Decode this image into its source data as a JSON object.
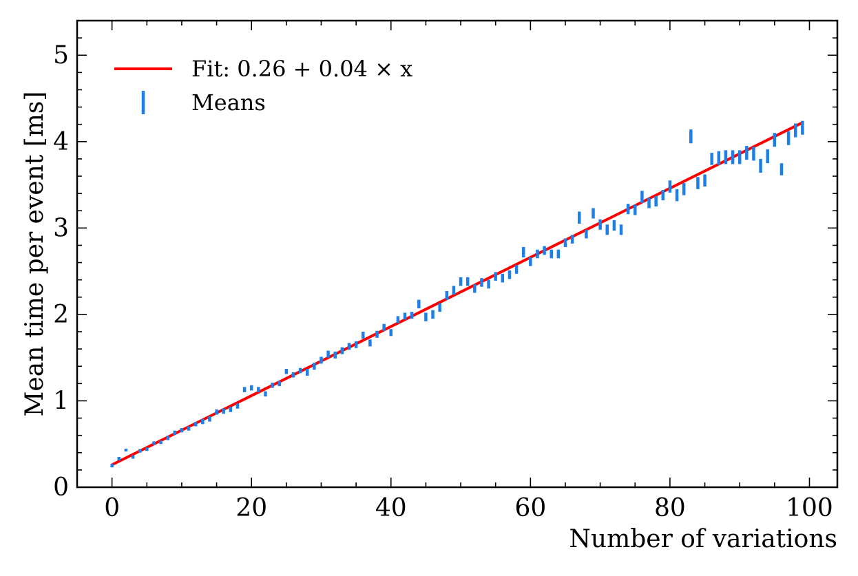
{
  "chart_data": {
    "type": "scatter",
    "title": "",
    "xlabel": "Number of variations",
    "ylabel": "Mean time per event [ms]",
    "xlim": [
      -5,
      104
    ],
    "ylim": [
      0,
      5.4
    ],
    "xticks": [
      0,
      20,
      40,
      60,
      80,
      100
    ],
    "xtick_labels": [
      "0",
      "20",
      "40",
      "60",
      "80",
      "100"
    ],
    "yticks": [
      0,
      1,
      2,
      3,
      4,
      5
    ],
    "ytick_labels": [
      "0",
      "1",
      "2",
      "3",
      "4",
      "5"
    ],
    "grid": false,
    "legend_position": "top-left",
    "legend": {
      "fit_label": "Fit: 0.26 + 0.04 × x",
      "means_label": "Means"
    },
    "fit": {
      "intercept": 0.26,
      "slope": 0.04,
      "x_range": [
        0,
        99
      ],
      "color": "#ff0000"
    },
    "series": [
      {
        "name": "Means",
        "color": "#1e7fe6",
        "x": [
          0,
          1,
          2,
          3,
          4,
          5,
          6,
          7,
          8,
          9,
          10,
          11,
          12,
          13,
          14,
          15,
          16,
          17,
          18,
          19,
          20,
          21,
          22,
          23,
          24,
          25,
          26,
          27,
          28,
          29,
          30,
          31,
          32,
          33,
          34,
          35,
          36,
          37,
          38,
          39,
          40,
          41,
          42,
          43,
          44,
          45,
          46,
          47,
          48,
          49,
          50,
          51,
          52,
          53,
          54,
          55,
          56,
          57,
          58,
          59,
          60,
          61,
          62,
          63,
          64,
          65,
          66,
          67,
          68,
          69,
          70,
          71,
          72,
          73,
          74,
          75,
          76,
          77,
          78,
          79,
          80,
          81,
          82,
          83,
          84,
          85,
          86,
          87,
          88,
          89,
          90,
          91,
          92,
          93,
          94,
          95,
          96,
          97,
          98,
          99
        ],
        "y": [
          0.25,
          0.33,
          0.43,
          0.35,
          0.42,
          0.44,
          0.51,
          0.52,
          0.57,
          0.63,
          0.66,
          0.68,
          0.73,
          0.76,
          0.79,
          0.87,
          0.88,
          0.9,
          0.94,
          1.13,
          1.15,
          1.13,
          1.08,
          1.18,
          1.2,
          1.34,
          1.3,
          1.35,
          1.33,
          1.4,
          1.47,
          1.54,
          1.53,
          1.58,
          1.63,
          1.65,
          1.76,
          1.67,
          1.77,
          1.85,
          1.79,
          1.94,
          1.98,
          1.99,
          2.12,
          1.97,
          2.0,
          2.08,
          2.22,
          2.28,
          2.38,
          2.38,
          2.3,
          2.37,
          2.35,
          2.44,
          2.42,
          2.46,
          2.52,
          2.72,
          2.61,
          2.7,
          2.74,
          2.7,
          2.7,
          2.83,
          2.87,
          3.12,
          2.93,
          3.17,
          3.04,
          2.98,
          3.03,
          2.98,
          3.22,
          3.21,
          3.36,
          3.29,
          3.31,
          3.38,
          3.48,
          3.38,
          3.45,
          4.06,
          3.52,
          3.55,
          3.8,
          3.81,
          3.82,
          3.82,
          3.82,
          3.87,
          3.86,
          3.72,
          3.83,
          4.02,
          3.68,
          4.04,
          4.13,
          4.16
        ],
        "err": [
          0.02,
          0.02,
          0.015,
          0.02,
          0.02,
          0.02,
          0.02,
          0.02,
          0.025,
          0.025,
          0.025,
          0.025,
          0.025,
          0.03,
          0.03,
          0.03,
          0.03,
          0.03,
          0.03,
          0.03,
          0.03,
          0.03,
          0.03,
          0.03,
          0.03,
          0.03,
          0.03,
          0.03,
          0.04,
          0.04,
          0.04,
          0.04,
          0.04,
          0.04,
          0.04,
          0.04,
          0.04,
          0.04,
          0.04,
          0.04,
          0.04,
          0.04,
          0.04,
          0.04,
          0.05,
          0.05,
          0.05,
          0.05,
          0.05,
          0.05,
          0.05,
          0.05,
          0.05,
          0.05,
          0.05,
          0.05,
          0.05,
          0.05,
          0.05,
          0.06,
          0.05,
          0.05,
          0.05,
          0.05,
          0.05,
          0.05,
          0.05,
          0.07,
          0.05,
          0.06,
          0.06,
          0.06,
          0.06,
          0.06,
          0.06,
          0.06,
          0.07,
          0.06,
          0.06,
          0.06,
          0.07,
          0.07,
          0.07,
          0.08,
          0.07,
          0.07,
          0.07,
          0.08,
          0.08,
          0.08,
          0.08,
          0.08,
          0.08,
          0.08,
          0.08,
          0.08,
          0.07,
          0.08,
          0.08,
          0.08
        ]
      }
    ]
  }
}
